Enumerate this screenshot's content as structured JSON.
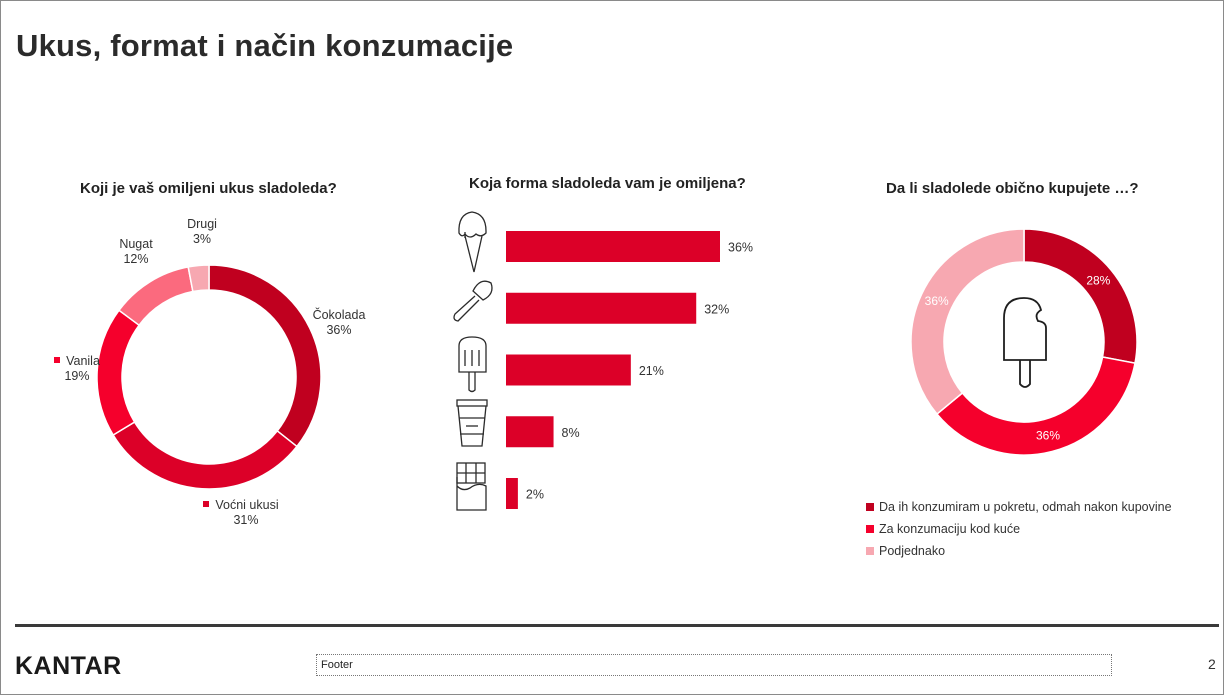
{
  "slide": {
    "title": "Ukus, format i način konzumacije",
    "brand": "KANTAR",
    "footer": "Footer",
    "page_number": "2"
  },
  "colors": {
    "dark_red": "#c0001f",
    "red": "#dc0028",
    "bright_red": "#f5002c",
    "light_red": "#fb6a7e",
    "pink": "#f7a8b1"
  },
  "chart_data": [
    {
      "type": "donut",
      "title": "Koji je vaš omiljeni ukus sladoleda?",
      "slices": [
        {
          "label": "Čokolada",
          "value": 36,
          "display": "36%",
          "color": "#c0001f"
        },
        {
          "label": "Voćni ukusi",
          "value": 31,
          "display": "31%",
          "color": "#dc0028"
        },
        {
          "label": "Vanila",
          "value": 19,
          "display": "19%",
          "color": "#f5002c"
        },
        {
          "label": "Nugat",
          "value": 12,
          "display": "12%",
          "color": "#fb6a7e"
        },
        {
          "label": "Drugi",
          "value": 3,
          "display": "3%",
          "color": "#f7a8b1"
        }
      ]
    },
    {
      "type": "bar",
      "orientation": "horizontal",
      "title": "Koja forma sladoleda vam je omiljena?",
      "categories": [
        "cone-icon",
        "scoop-icon",
        "popsicle-icon",
        "cup-icon",
        "bar-icon"
      ],
      "values": [
        36,
        32,
        21,
        8,
        2
      ],
      "display": [
        "36%",
        "32%",
        "21%",
        "8%",
        "2%"
      ],
      "color": "#dc0028",
      "xlim": [
        0,
        36
      ]
    },
    {
      "type": "donut",
      "title": "Da li sladolede obično kupujete …?",
      "slices": [
        {
          "label": "Da ih konzumiram u pokretu, odmah nakon kupovine",
          "value": 28,
          "display": "28%",
          "color": "#c0001f"
        },
        {
          "label": "Za konzumaciju kod kuće",
          "value": 36,
          "display": "36%",
          "color": "#f5002c"
        },
        {
          "label": "Podjednako",
          "value": 36,
          "display": "36%",
          "color": "#f7a8b1"
        }
      ],
      "legend_position": "bottom"
    }
  ]
}
